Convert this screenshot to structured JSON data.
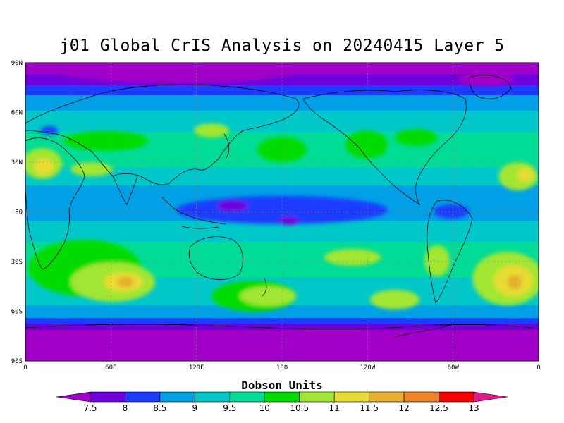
{
  "title": "j01 Global CrIS Analysis on 20240415 Layer 5",
  "lat_labels": [
    "90N",
    "60N",
    "30N",
    "EQ",
    "30S",
    "60S",
    "90S"
  ],
  "lon_labels": [
    "0",
    "60E",
    "120E",
    "180",
    "120W",
    "60W",
    "0"
  ],
  "colorbar": {
    "title": "Dobson Units",
    "ticks": [
      "7.5",
      "8",
      "8.5",
      "9",
      "9.5",
      "10",
      "10.5",
      "11",
      "11.5",
      "12",
      "12.5",
      "13"
    ],
    "colors": [
      "#a000c8",
      "#6e00dc",
      "#1e3cff",
      "#00a0e6",
      "#00c8c8",
      "#00dc96",
      "#00dc00",
      "#a0e632",
      "#e6dc32",
      "#e6af2d",
      "#f08228",
      "#fa0000",
      "#e6198c"
    ]
  },
  "map": {
    "lat_range": [
      -90,
      90
    ],
    "lon_range": [
      0,
      360
    ],
    "grid": "dashed",
    "coastlines": true
  }
}
